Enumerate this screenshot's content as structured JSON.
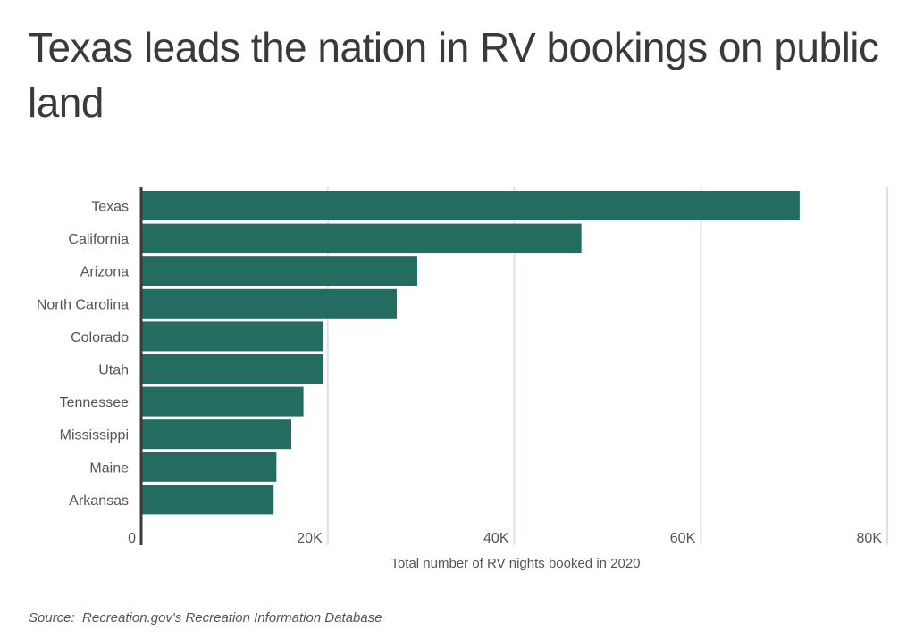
{
  "chart_data": {
    "type": "bar",
    "orientation": "horizontal",
    "title": "Texas leads the nation in RV bookings on public land",
    "categories": [
      "Texas",
      "California",
      "Arizona",
      "North Carolina",
      "Colorado",
      "Utah",
      "Tennessee",
      "Mississippi",
      "Maine",
      "Arkansas"
    ],
    "values": [
      70600,
      47200,
      29600,
      27400,
      19500,
      19500,
      17400,
      16100,
      14500,
      14200
    ],
    "xlabel": "Total number of RV nights booked in 2020",
    "ylabel": "",
    "xlim": [
      0,
      80000
    ],
    "ticks": [
      0,
      20000,
      40000,
      60000,
      80000
    ],
    "tick_labels": [
      "0",
      "20K",
      "40K",
      "60K",
      "80K"
    ],
    "grid": true,
    "legend": "none",
    "bar_color": "#246b60",
    "source": "Source:  Recreation.gov's Recreation Information Database"
  }
}
